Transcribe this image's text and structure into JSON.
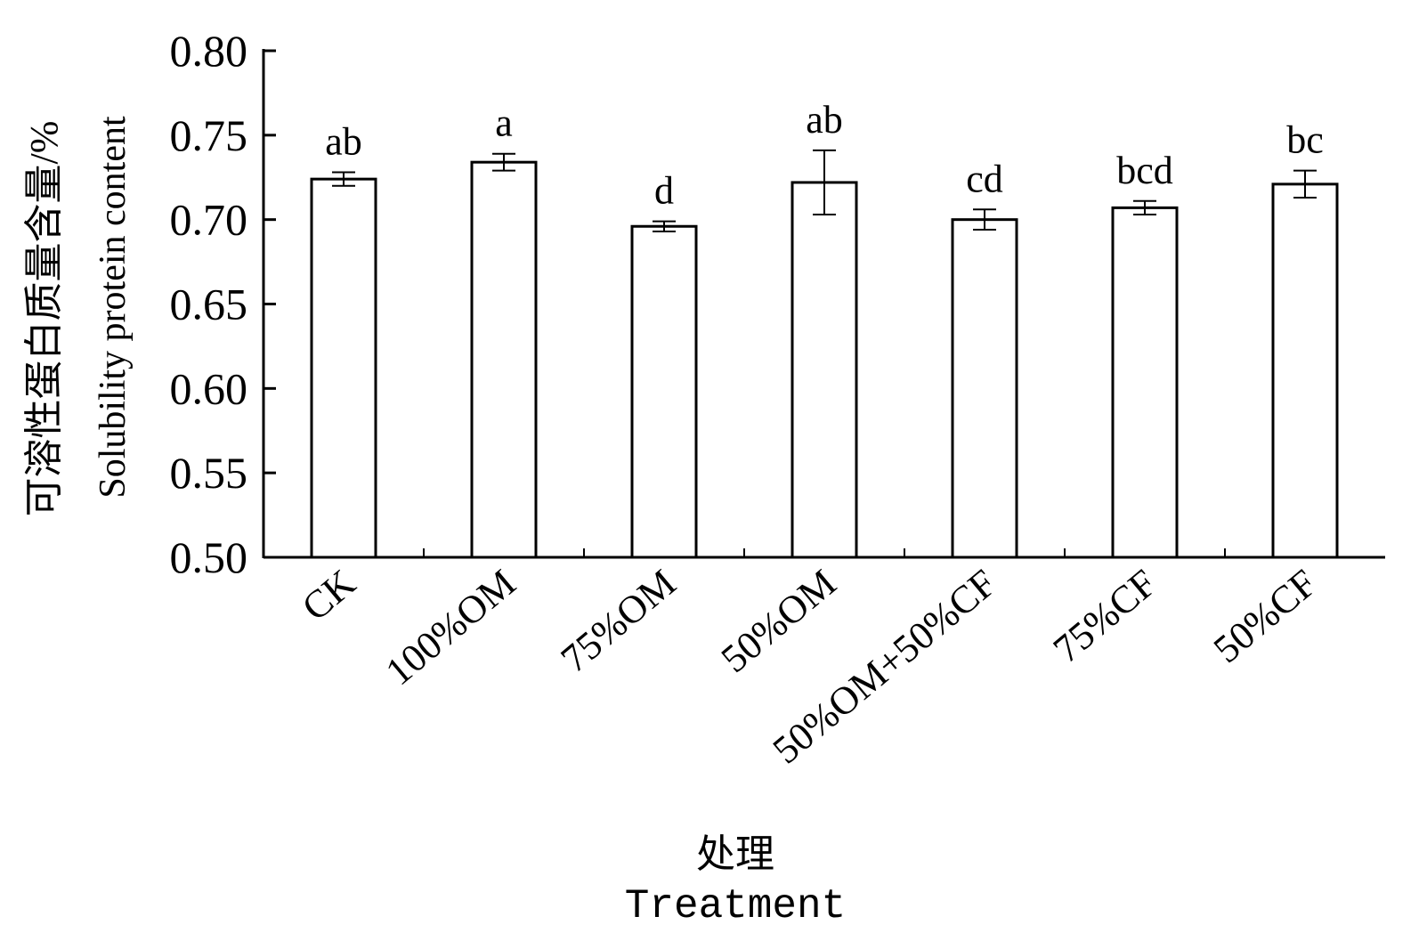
{
  "chart_data": {
    "type": "bar",
    "categories": [
      "CK",
      "100%OM",
      "75%OM",
      "50%OM",
      "50%OM+50%CF",
      "75%CF",
      "50%CF"
    ],
    "values": [
      0.724,
      0.734,
      0.696,
      0.722,
      0.7,
      0.707,
      0.721
    ],
    "error": [
      0.004,
      0.005,
      0.003,
      0.019,
      0.006,
      0.004,
      0.008
    ],
    "significance": [
      "ab",
      "a",
      "d",
      "ab",
      "cd",
      "bcd",
      "bc"
    ],
    "ylabel_cn": "可溶性蛋白质量含量/%",
    "ylabel": "Solubility protein content",
    "xlabel_cn": "处理",
    "xlabel": "Treatment",
    "ylim": [
      0.5,
      0.8
    ],
    "yticks": [
      "0.50",
      "0.55",
      "0.60",
      "0.65",
      "0.70",
      "0.75",
      "0.80"
    ],
    "grid": false,
    "bar_fill": "#ffffff",
    "bar_stroke": "#000000"
  }
}
